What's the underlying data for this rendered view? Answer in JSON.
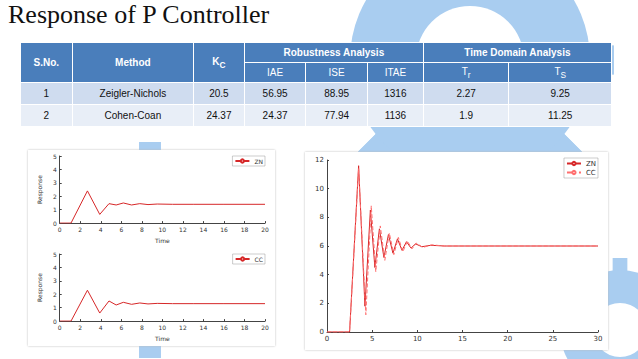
{
  "title": "Response of P Controller",
  "table": {
    "header": {
      "group_row": [
        {
          "text": "S.No."
        },
        {
          "text": "Method"
        },
        {
          "text": "K",
          "subscript": "C"
        },
        {
          "text": "Robustness Analysis"
        },
        {
          "text": "Time Domain Analysis"
        }
      ],
      "sub_row": [
        {
          "text": "IAE"
        },
        {
          "text": "ISE"
        },
        {
          "text": "ITAE"
        },
        {
          "text": "T",
          "subscript": "r"
        },
        {
          "text": "T",
          "subscript": "S"
        }
      ]
    },
    "rows": [
      [
        "1",
        "Zeigler-Nichols",
        "20.5",
        "56.95",
        "88.95",
        "1316",
        "2.27",
        "9.25"
      ],
      [
        "2",
        "Cohen-Coan",
        "24.37",
        "24.37",
        "77.94",
        "1136",
        "1.9",
        "11.25"
      ]
    ]
  },
  "chart_data": [
    {
      "type": "line",
      "xlabel": "Time",
      "ylabel": "Response",
      "xlim": [
        0,
        20
      ],
      "xticks": [
        0,
        2,
        4,
        6,
        8,
        10,
        12,
        14,
        16,
        18,
        20
      ],
      "ylim": [
        0,
        5
      ],
      "yticks": [
        0,
        1,
        2,
        3,
        4,
        5
      ],
      "grid": false,
      "legend": "upper right",
      "series": [
        {
          "name": "ZN",
          "color": "#d62728",
          "line_style": "solid",
          "x": [
            0,
            1.1,
            2.7,
            3.9,
            4.8,
            5.5,
            6.2,
            7,
            7.8,
            8.6,
            9.5,
            11,
            13,
            16,
            20
          ],
          "values": [
            0,
            0,
            2.4,
            0.65,
            1.45,
            1.35,
            1.5,
            1.35,
            1.45,
            1.38,
            1.42,
            1.4,
            1.4,
            1.4,
            1.4
          ]
        }
      ]
    },
    {
      "type": "line",
      "xlabel": "Time",
      "ylabel": "Response",
      "xlim": [
        0,
        20
      ],
      "xticks": [
        0,
        2,
        4,
        6,
        8,
        10,
        12,
        14,
        16,
        18,
        20
      ],
      "ylim": [
        0,
        5
      ],
      "yticks": [
        0,
        1,
        2,
        3,
        4,
        5
      ],
      "grid": false,
      "legend": "upper right",
      "series": [
        {
          "name": "CC",
          "color": "#d62728",
          "line_style": "solid",
          "x": [
            0,
            1.1,
            2.7,
            3.9,
            4.8,
            5.5,
            6.2,
            7,
            7.8,
            8.6,
            9.5,
            11,
            13,
            16,
            20
          ],
          "values": [
            0,
            0,
            2.3,
            0.6,
            1.5,
            1.2,
            1.4,
            1.25,
            1.35,
            1.28,
            1.32,
            1.3,
            1.3,
            1.3,
            1.3
          ]
        }
      ]
    },
    {
      "type": "line",
      "xlim": [
        0,
        30
      ],
      "xticks": [
        0,
        5,
        10,
        15,
        20,
        25,
        30
      ],
      "ylim": [
        0,
        12
      ],
      "yticks": [
        0,
        2,
        4,
        6,
        8,
        10,
        12
      ],
      "grid": false,
      "legend": "upper right",
      "series": [
        {
          "name": "ZN",
          "color": "#d62728",
          "line_style": "solid",
          "x": [
            0,
            2.5,
            3.5,
            4.2,
            4.8,
            5.3,
            5.8,
            6.3,
            6.8,
            7.3,
            7.8,
            8.3,
            8.8,
            9.3,
            9.8,
            10.5,
            11.5,
            13,
            30
          ],
          "values": [
            0,
            0,
            11.6,
            1.8,
            8.5,
            4.5,
            7.2,
            5.2,
            6.8,
            5.5,
            6.5,
            5.7,
            6.3,
            5.85,
            6.15,
            5.95,
            6.05,
            6,
            6
          ]
        },
        {
          "name": "CC",
          "color": "#ff6f6f",
          "line_style": "dashed",
          "x": [
            0,
            2.5,
            3.5,
            4.3,
            4.9,
            5.4,
            5.9,
            6.4,
            6.9,
            7.4,
            7.9,
            8.4,
            8.9,
            9.4,
            9.9,
            10.6,
            11.6,
            13,
            30
          ],
          "values": [
            0,
            0,
            11.4,
            1.2,
            8.8,
            4.2,
            7.4,
            5.0,
            6.9,
            5.4,
            6.6,
            5.6,
            6.35,
            5.8,
            6.2,
            5.9,
            6.08,
            6,
            6
          ]
        }
      ]
    }
  ]
}
